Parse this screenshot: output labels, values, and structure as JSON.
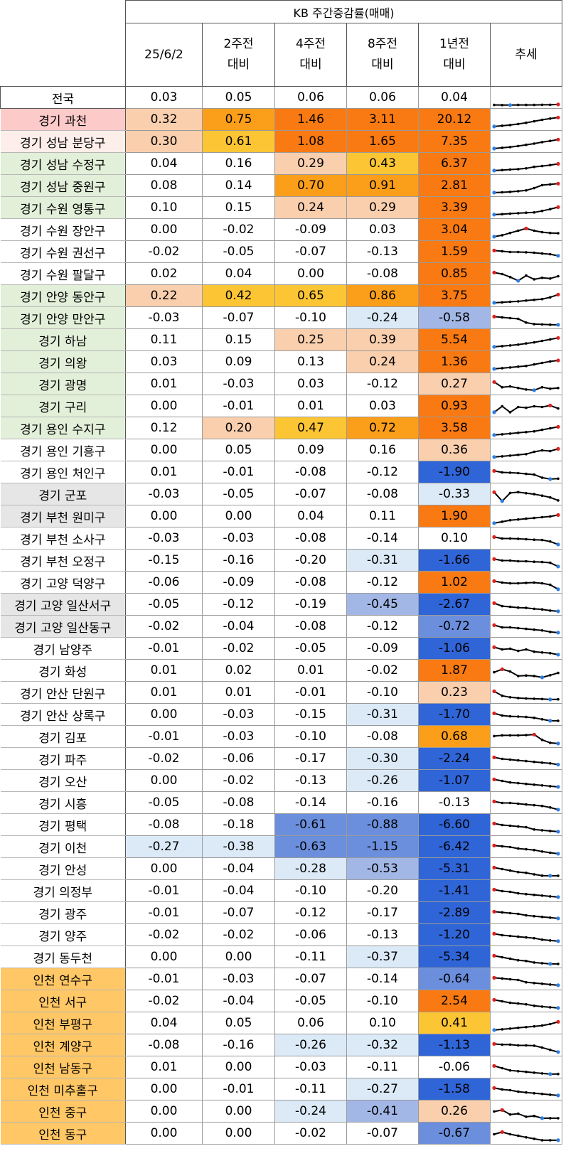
{
  "header": {
    "group_title": "KB 주간증감률(매매)",
    "columns": [
      "25/6/2",
      "2주전\n대비",
      "4주전\n대비",
      "8주전\n대비",
      "1년전\n대비",
      "추세"
    ]
  },
  "colors": {
    "orange_dark": "#f97a12",
    "orange_mid": "#fb9e1a",
    "yellow": "#fcc534",
    "peach": "#f9cfae",
    "blue_dark": "#2f65d7",
    "blue_mid": "#6b8fdd",
    "blue_soft": "#a3b7e6",
    "blue_pale": "#dceaf7",
    "row_pink": "#fdcaca",
    "row_pink_light": "#fdeeea",
    "row_green": "#e2efd9",
    "row_gray": "#e6e6e6",
    "row_orange": "#ffc765",
    "spark_line": "#000000",
    "spark_max": "#e02020",
    "spark_min": "#2e7de0"
  },
  "chart_data": {
    "type": "table",
    "title": "KB 주간증감률(매매)",
    "columns": [
      "25/6/2",
      "2주전 대비",
      "4주전 대비",
      "8주전 대비",
      "1년전 대비",
      "추세"
    ],
    "rows": [
      {
        "name": "전국",
        "values": [
          "0.03",
          "0.05",
          "0.06",
          "0.06",
          "0.04"
        ],
        "row_bg": "#ffffff",
        "trend": [
          0.02,
          0.01,
          0.01,
          0.02,
          0.02,
          0.02,
          0.03,
          0.03,
          0.05
        ],
        "trend_min": 2
      },
      {
        "name": "경기 과천",
        "values": [
          "0.32",
          "0.75",
          "1.46",
          "3.11",
          "20.12"
        ],
        "row_bg": "#fdcaca",
        "trend": [
          0.05,
          0.1,
          0.15,
          0.22,
          0.3,
          0.4,
          0.5,
          0.58,
          0.65
        ]
      },
      {
        "name": "경기 성남 분당구",
        "values": [
          "0.30",
          "0.61",
          "1.08",
          "1.65",
          "7.35"
        ],
        "row_bg": "#fdeeea",
        "trend": [
          0.05,
          0.1,
          0.15,
          0.22,
          0.3,
          0.38,
          0.48,
          0.56,
          0.65
        ]
      },
      {
        "name": "경기 성남 수정구",
        "values": [
          "0.04",
          "0.16",
          "0.29",
          "0.43",
          "6.37"
        ],
        "row_bg": "#e2efd9",
        "trend": [
          0.05,
          0.08,
          0.12,
          0.15,
          0.2,
          0.3,
          0.35,
          0.42,
          0.5
        ]
      },
      {
        "name": "경기 성남 중원구",
        "values": [
          "0.08",
          "0.14",
          "0.70",
          "0.91",
          "2.81"
        ],
        "row_bg": "#e2efd9",
        "trend": [
          0.05,
          0.07,
          0.1,
          0.15,
          0.2,
          0.35,
          0.55,
          0.6,
          0.65
        ]
      },
      {
        "name": "경기 수원 영통구",
        "values": [
          "0.10",
          "0.15",
          "0.24",
          "0.29",
          "3.39"
        ],
        "row_bg": "#e2efd9",
        "trend": [
          0.05,
          0.08,
          0.12,
          0.15,
          0.18,
          0.2,
          0.3,
          0.42,
          0.55
        ]
      },
      {
        "name": "경기 수원 장안구",
        "values": [
          "0.00",
          "-0.02",
          "-0.09",
          "0.03",
          "3.04"
        ],
        "row_bg": "#ffffff",
        "trend": [
          0.05,
          0.15,
          0.3,
          0.45,
          0.6,
          0.45,
          0.35,
          0.3,
          0.28
        ]
      },
      {
        "name": "경기 수원 권선구",
        "values": [
          "-0.02",
          "-0.05",
          "-0.07",
          "-0.13",
          "1.59"
        ],
        "row_bg": "#ffffff",
        "trend": [
          0.6,
          0.55,
          0.5,
          0.5,
          0.48,
          0.45,
          0.4,
          0.35,
          0.25
        ]
      },
      {
        "name": "경기 수원 팔달구",
        "values": [
          "0.02",
          "0.04",
          "0.00",
          "-0.08",
          "0.85"
        ],
        "row_bg": "#ffffff",
        "trend": [
          0.6,
          0.5,
          0.3,
          0.05,
          0.4,
          0.15,
          0.25,
          0.2,
          0.35
        ],
        "trend_min": 3
      },
      {
        "name": "경기 안양 동안구",
        "values": [
          "0.22",
          "0.42",
          "0.65",
          "0.86",
          "3.75"
        ],
        "row_bg": "#e2efd9",
        "trend": [
          0.05,
          0.08,
          0.12,
          0.15,
          0.2,
          0.25,
          0.3,
          0.42,
          0.6
        ]
      },
      {
        "name": "경기 안양 만안구",
        "values": [
          "-0.03",
          "-0.07",
          "-0.10",
          "-0.24",
          "-0.58"
        ],
        "row_bg": "#e2efd9",
        "trend": [
          0.6,
          0.55,
          0.5,
          0.45,
          0.2,
          0.1,
          0.08,
          0.06,
          0.05
        ]
      },
      {
        "name": "경기 하남",
        "values": [
          "0.11",
          "0.15",
          "0.25",
          "0.39",
          "5.54"
        ],
        "row_bg": "#e2efd9",
        "trend": [
          0.05,
          0.1,
          0.15,
          0.2,
          0.28,
          0.35,
          0.45,
          0.55,
          0.65
        ]
      },
      {
        "name": "경기 의왕",
        "values": [
          "0.03",
          "0.09",
          "0.13",
          "0.24",
          "1.36"
        ],
        "row_bg": "#e2efd9",
        "trend": [
          0.05,
          0.1,
          0.15,
          0.2,
          0.25,
          0.35,
          0.45,
          0.55,
          0.62
        ]
      },
      {
        "name": "경기 광명",
        "values": [
          "0.01",
          "-0.03",
          "0.03",
          "-0.12",
          "0.27"
        ],
        "row_bg": "#e2efd9",
        "trend": [
          0.65,
          0.3,
          0.35,
          0.25,
          0.15,
          0.1,
          0.3,
          0.2,
          0.25
        ],
        "trend_min": 5
      },
      {
        "name": "경기 구리",
        "values": [
          "0.00",
          "-0.01",
          "0.01",
          "0.03",
          "0.93"
        ],
        "row_bg": "#e2efd9",
        "trend": [
          0.1,
          0.5,
          0.1,
          0.45,
          0.4,
          0.5,
          0.45,
          0.55,
          0.35
        ]
      },
      {
        "name": "경기 용인 수지구",
        "values": [
          "0.12",
          "0.20",
          "0.47",
          "0.72",
          "3.58"
        ],
        "row_bg": "#e2efd9",
        "trend": [
          0.05,
          0.1,
          0.15,
          0.2,
          0.25,
          0.3,
          0.4,
          0.5,
          0.6
        ]
      },
      {
        "name": "경기 용인 기흥구",
        "values": [
          "0.00",
          "0.05",
          "0.09",
          "0.16",
          "0.36"
        ],
        "row_bg": "#ffffff",
        "trend": [
          0.05,
          0.1,
          0.15,
          0.2,
          0.25,
          0.4,
          0.5,
          0.45,
          0.6
        ]
      },
      {
        "name": "경기 용인 처인구",
        "values": [
          "0.01",
          "-0.01",
          "-0.08",
          "-0.12",
          "-1.90"
        ],
        "row_bg": "#ffffff",
        "trend": [
          0.6,
          0.5,
          0.48,
          0.45,
          0.4,
          0.35,
          0.15,
          0.05,
          0.08
        ]
      },
      {
        "name": "경기 군포",
        "values": [
          "-0.03",
          "-0.05",
          "-0.07",
          "-0.08",
          "-0.33"
        ],
        "row_bg": "#e6e6e6",
        "trend": [
          0.65,
          0.05,
          0.6,
          0.65,
          0.58,
          0.52,
          0.42,
          0.3,
          0.1
        ]
      },
      {
        "name": "경기 부천 원미구",
        "values": [
          "0.00",
          "0.00",
          "0.04",
          "0.11",
          "1.90"
        ],
        "row_bg": "#e6e6e6",
        "trend": [
          0.05,
          0.15,
          0.25,
          0.3,
          0.35,
          0.4,
          0.45,
          0.5,
          0.6
        ]
      },
      {
        "name": "경기 부천 소사구",
        "values": [
          "-0.03",
          "-0.03",
          "-0.08",
          "-0.14",
          "0.10"
        ],
        "row_bg": "#ffffff",
        "trend": [
          0.6,
          0.5,
          0.5,
          0.48,
          0.45,
          0.42,
          0.4,
          0.3,
          0.1
        ]
      },
      {
        "name": "경기 부천 오정구",
        "values": [
          "-0.15",
          "-0.16",
          "-0.20",
          "-0.31",
          "-1.66"
        ],
        "row_bg": "#ffffff",
        "trend": [
          0.6,
          0.5,
          0.5,
          0.45,
          0.45,
          0.42,
          0.4,
          0.35,
          0.1
        ]
      },
      {
        "name": "경기 고양 덕양구",
        "values": [
          "-0.06",
          "-0.09",
          "-0.08",
          "-0.12",
          "1.02"
        ],
        "row_bg": "#ffffff",
        "trend": [
          0.6,
          0.5,
          0.45,
          0.45,
          0.48,
          0.5,
          0.45,
          0.35,
          0.05
        ]
      },
      {
        "name": "경기 고양 일산서구",
        "values": [
          "-0.05",
          "-0.12",
          "-0.19",
          "-0.45",
          "-2.67"
        ],
        "row_bg": "#e6e6e6",
        "trend": [
          0.6,
          0.4,
          0.35,
          0.3,
          0.28,
          0.22,
          0.18,
          0.1,
          0.05
        ]
      },
      {
        "name": "경기 고양 일산동구",
        "values": [
          "-0.02",
          "-0.04",
          "-0.08",
          "-0.12",
          "-0.72"
        ],
        "row_bg": "#e6e6e6",
        "trend": [
          0.6,
          0.45,
          0.45,
          0.4,
          0.35,
          0.3,
          0.25,
          0.15,
          0.1
        ]
      },
      {
        "name": "경기 남양주",
        "values": [
          "-0.01",
          "-0.02",
          "-0.05",
          "-0.09",
          "-1.06"
        ],
        "row_bg": "#ffffff",
        "trend": [
          0.6,
          0.45,
          0.5,
          0.35,
          0.45,
          0.3,
          0.25,
          0.2,
          0.1
        ]
      },
      {
        "name": "경기 화성",
        "values": [
          "0.01",
          "0.02",
          "0.01",
          "-0.02",
          "1.87"
        ],
        "row_bg": "#ffffff",
        "trend": [
          0.4,
          0.6,
          0.45,
          0.15,
          0.18,
          0.15,
          0.05,
          0.2,
          0.35
        ]
      },
      {
        "name": "경기 안산 단원구",
        "values": [
          "0.01",
          "0.01",
          "-0.01",
          "-0.10",
          "0.23"
        ],
        "row_bg": "#ffffff",
        "trend": [
          0.6,
          0.3,
          0.2,
          0.15,
          0.12,
          0.1,
          0.08,
          0.05,
          0.06
        ]
      },
      {
        "name": "경기 안산 상록구",
        "values": [
          "0.00",
          "-0.03",
          "-0.15",
          "-0.31",
          "-1.70"
        ],
        "row_bg": "#ffffff",
        "trend": [
          0.6,
          0.45,
          0.4,
          0.38,
          0.35,
          0.3,
          0.2,
          0.1,
          0.1
        ]
      },
      {
        "name": "경기 김포",
        "values": [
          "-0.01",
          "-0.03",
          "-0.10",
          "-0.08",
          "0.68"
        ],
        "row_bg": "#ffffff",
        "trend": [
          0.55,
          0.6,
          0.6,
          0.6,
          0.62,
          0.65,
          0.3,
          0.1,
          0.05
        ]
      },
      {
        "name": "경기 파주",
        "values": [
          "-0.02",
          "-0.06",
          "-0.17",
          "-0.30",
          "-2.24"
        ],
        "row_bg": "#ffffff",
        "trend": [
          0.6,
          0.5,
          0.45,
          0.4,
          0.35,
          0.3,
          0.25,
          0.2,
          0.12
        ]
      },
      {
        "name": "경기 오산",
        "values": [
          "0.00",
          "-0.02",
          "-0.13",
          "-0.26",
          "-1.07"
        ],
        "row_bg": "#ffffff",
        "trend": [
          0.6,
          0.5,
          0.4,
          0.35,
          0.3,
          0.25,
          0.2,
          0.15,
          0.1
        ]
      },
      {
        "name": "경기 시흥",
        "values": [
          "-0.05",
          "-0.08",
          "-0.14",
          "-0.16",
          "-0.13"
        ],
        "row_bg": "#ffffff",
        "trend": [
          0.6,
          0.5,
          0.5,
          0.45,
          0.4,
          0.35,
          0.3,
          0.2,
          0.05
        ]
      },
      {
        "name": "경기 평택",
        "values": [
          "-0.08",
          "-0.18",
          "-0.61",
          "-0.88",
          "-6.60"
        ],
        "row_bg": "#ffffff",
        "trend": [
          0.6,
          0.5,
          0.45,
          0.4,
          0.35,
          0.2,
          0.15,
          0.1,
          0.05
        ]
      },
      {
        "name": "경기 이천",
        "values": [
          "-0.27",
          "-0.38",
          "-0.63",
          "-1.15",
          "-6.42"
        ],
        "row_bg": "#ffffff",
        "trend": [
          0.6,
          0.55,
          0.5,
          0.4,
          0.35,
          0.3,
          0.2,
          0.12,
          0.05
        ]
      },
      {
        "name": "경기 안성",
        "values": [
          "0.00",
          "-0.04",
          "-0.28",
          "-0.53",
          "-5.31"
        ],
        "row_bg": "#ffffff",
        "trend": [
          0.6,
          0.5,
          0.4,
          0.3,
          0.25,
          0.15,
          0.06,
          0.05,
          0.05
        ]
      },
      {
        "name": "경기 의정부",
        "values": [
          "-0.01",
          "-0.04",
          "-0.10",
          "-0.20",
          "-1.41"
        ],
        "row_bg": "#ffffff",
        "trend": [
          0.6,
          0.5,
          0.45,
          0.35,
          0.3,
          0.25,
          0.2,
          0.15,
          0.1
        ]
      },
      {
        "name": "경기 광주",
        "values": [
          "-0.01",
          "-0.07",
          "-0.12",
          "-0.17",
          "-2.89"
        ],
        "row_bg": "#ffffff",
        "trend": [
          0.6,
          0.55,
          0.5,
          0.45,
          0.35,
          0.3,
          0.25,
          0.2,
          0.15
        ]
      },
      {
        "name": "경기 양주",
        "values": [
          "-0.02",
          "-0.02",
          "-0.06",
          "-0.13",
          "-1.20"
        ],
        "row_bg": "#ffffff",
        "trend": [
          0.6,
          0.5,
          0.45,
          0.4,
          0.35,
          0.3,
          0.2,
          0.15,
          0.1
        ]
      },
      {
        "name": "경기 동두천",
        "values": [
          "0.00",
          "0.00",
          "-0.11",
          "-0.37",
          "-5.34"
        ],
        "row_bg": "#ffffff",
        "trend": [
          0.6,
          0.5,
          0.4,
          0.3,
          0.25,
          0.15,
          0.1,
          0.05,
          0.05
        ]
      },
      {
        "name": "인천 연수구",
        "values": [
          "-0.01",
          "-0.03",
          "-0.07",
          "-0.14",
          "-0.64"
        ],
        "row_bg": "#ffc765",
        "trend": [
          0.6,
          0.55,
          0.5,
          0.45,
          0.3,
          0.25,
          0.2,
          0.15,
          0.1
        ]
      },
      {
        "name": "인천 서구",
        "values": [
          "-0.02",
          "-0.04",
          "-0.05",
          "-0.10",
          "2.54"
        ],
        "row_bg": "#ffc765",
        "trend": [
          0.6,
          0.5,
          0.4,
          0.35,
          0.3,
          0.2,
          0.15,
          0.1,
          0.05
        ]
      },
      {
        "name": "인천 부평구",
        "values": [
          "0.04",
          "0.05",
          "0.06",
          "0.10",
          "0.41"
        ],
        "row_bg": "#ffc765",
        "trend": [
          0.05,
          0.1,
          0.15,
          0.2,
          0.25,
          0.3,
          0.35,
          0.45,
          0.6
        ]
      },
      {
        "name": "인천 계양구",
        "values": [
          "-0.08",
          "-0.16",
          "-0.26",
          "-0.32",
          "-1.13"
        ],
        "row_bg": "#ffc765",
        "trend": [
          0.6,
          0.55,
          0.55,
          0.5,
          0.5,
          0.48,
          0.35,
          0.2,
          0.05
        ]
      },
      {
        "name": "인천 남동구",
        "values": [
          "0.01",
          "0.00",
          "-0.03",
          "-0.11",
          "-0.06"
        ],
        "row_bg": "#ffc765",
        "trend": [
          0.6,
          0.45,
          0.3,
          0.25,
          0.2,
          0.15,
          0.1,
          0.05,
          0.06
        ]
      },
      {
        "name": "인천 미추홀구",
        "values": [
          "0.00",
          "-0.01",
          "-0.11",
          "-0.27",
          "-1.58"
        ],
        "row_bg": "#ffc765",
        "trend": [
          0.6,
          0.5,
          0.45,
          0.35,
          0.3,
          0.25,
          0.2,
          0.15,
          0.1
        ]
      },
      {
        "name": "인천 중구",
        "values": [
          "0.00",
          "0.00",
          "-0.24",
          "-0.41",
          "0.26"
        ],
        "row_bg": "#ffc765",
        "trend": [
          0.5,
          0.6,
          0.3,
          0.35,
          0.15,
          0.2,
          0.05,
          0.05,
          0.05
        ]
      },
      {
        "name": "인천 동구",
        "values": [
          "0.00",
          "0.00",
          "-0.02",
          "-0.07",
          "-0.67"
        ],
        "row_bg": "#ffc765",
        "trend": [
          0.45,
          0.6,
          0.45,
          0.35,
          0.25,
          0.15,
          0.05,
          0.05,
          0.05
        ],
        "trend_min": 8
      }
    ]
  }
}
